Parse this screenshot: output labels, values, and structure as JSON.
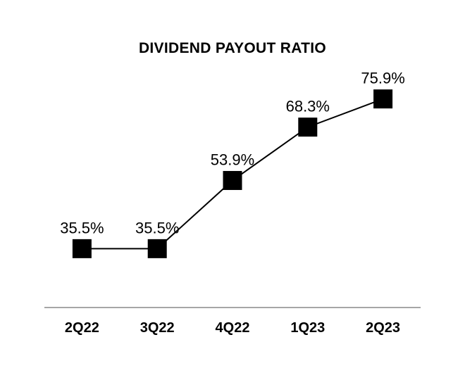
{
  "chart_data": {
    "type": "line",
    "title": "DIVIDEND PAYOUT RATIO",
    "categories": [
      "2Q22",
      "3Q22",
      "4Q22",
      "1Q23",
      "2Q23"
    ],
    "values": [
      35.5,
      35.5,
      53.9,
      68.3,
      75.9
    ],
    "labels": [
      "35.5%",
      "35.5%",
      "53.9%",
      "68.3%",
      "75.9%"
    ],
    "xlabel": "",
    "ylabel": "",
    "ylim": [
      20,
      80
    ],
    "grid": false,
    "legend": false,
    "marker_shape": "square",
    "colors": {
      "line": "#000000",
      "marker": "#000000",
      "data_label_text": "#000000",
      "tick_label_text": "#000000",
      "title_text": "#000000",
      "axis_line": "#a6a6a6",
      "background": "#ffffff"
    }
  }
}
